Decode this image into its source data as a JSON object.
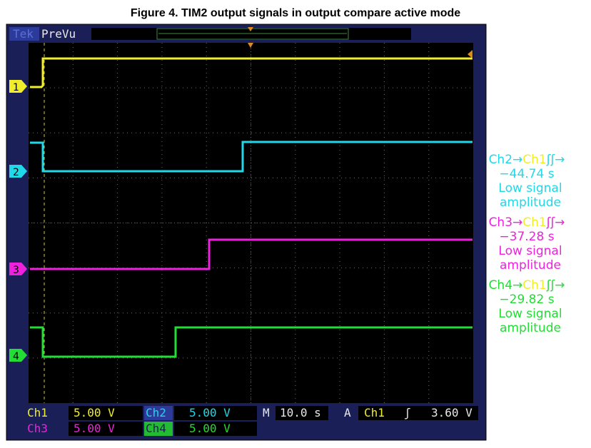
{
  "figure_title": "Figure 4. TIM2 output signals in output compare active mode",
  "top_bar": {
    "brand": "Tek",
    "mode": "PreVu"
  },
  "channel_markers": [
    "1",
    "2",
    "3",
    "4"
  ],
  "measurements": [
    {
      "from": "Ch2→",
      "to": "Ch1",
      "edge": "ʃʃ→",
      "value": "−44.74 s",
      "note": [
        "Low signal",
        "amplitude"
      ]
    },
    {
      "from": "Ch3→",
      "to": "Ch1",
      "edge": "ʃʃ→",
      "value": "−37.28 s",
      "note": [
        "Low signal",
        "amplitude"
      ]
    },
    {
      "from": "Ch4→",
      "to": "Ch1",
      "edge": "ʃʃ→",
      "value": "−29.82 s",
      "note": [
        "Low signal",
        "amplitude"
      ]
    }
  ],
  "readouts": {
    "ch1": {
      "label": "Ch1",
      "scale": "5.00 V"
    },
    "ch2": {
      "label": "Ch2",
      "scale": "5.00 V"
    },
    "ch3": {
      "label": "Ch3",
      "scale": "5.00 V"
    },
    "ch4": {
      "label": "Ch4",
      "scale": "5.00 V"
    },
    "timebase": {
      "label": "M",
      "scale": "10.0 s"
    },
    "trigger": {
      "label": "A",
      "source": "Ch1",
      "slope": "ʃ",
      "level": "3.60 V"
    }
  }
}
